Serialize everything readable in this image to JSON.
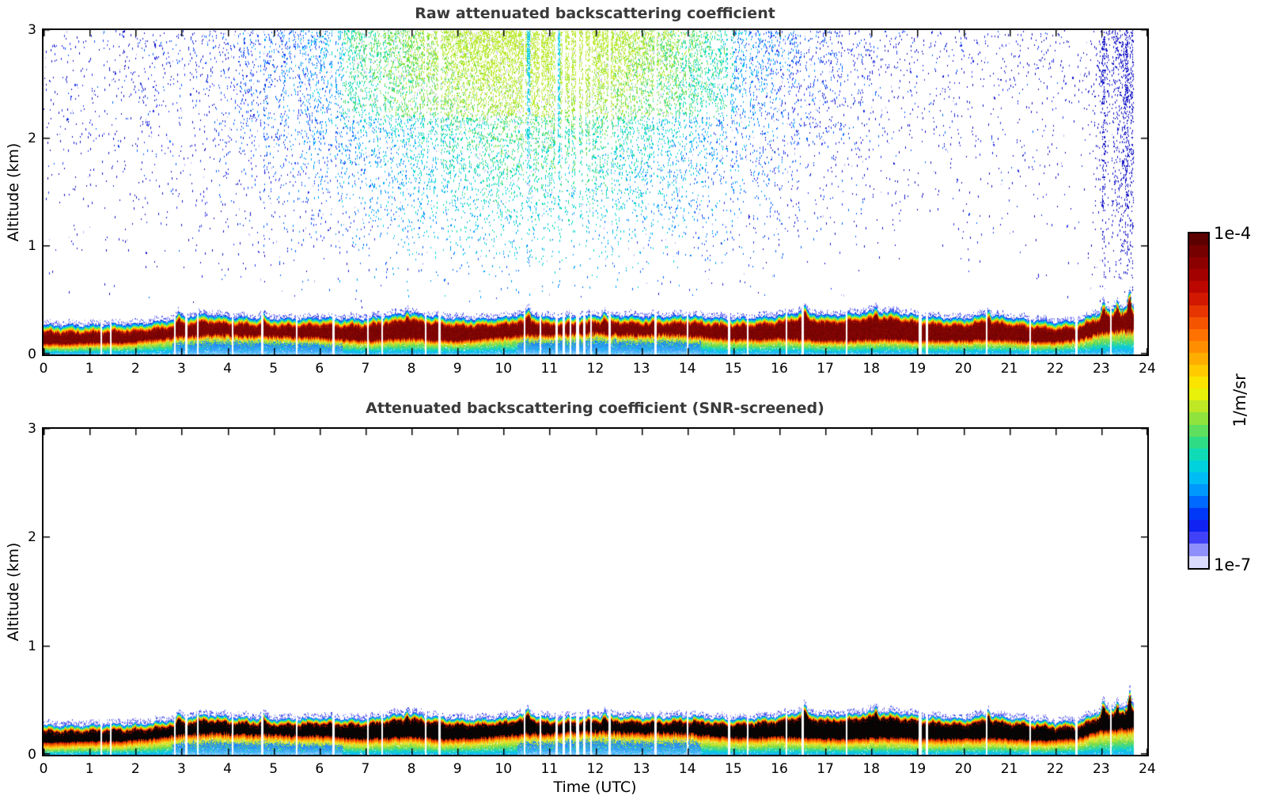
{
  "panels": {
    "raw": {
      "title": "Raw attenuated backscattering coefficient"
    },
    "screened": {
      "title": "Attenuated backscattering coefficient (SNR-screened)"
    }
  },
  "axes": {
    "ylabel": "Altitude (km)",
    "xlabel": "Time (UTC)",
    "x_ticks": [
      "0",
      "1",
      "2",
      "3",
      "4",
      "5",
      "6",
      "7",
      "8",
      "9",
      "10",
      "11",
      "12",
      "13",
      "14",
      "15",
      "16",
      "17",
      "18",
      "19",
      "20",
      "21",
      "22",
      "23",
      "24"
    ],
    "y_ticks": [
      "0",
      "1",
      "2",
      "3"
    ]
  },
  "colorbar": {
    "top_label": "1e-4",
    "bottom_label": "1e-7",
    "unit": "1/m/sr",
    "stops": [
      [
        0.0,
        "#500000"
      ],
      [
        0.06,
        "#7a0000"
      ],
      [
        0.12,
        "#a00000"
      ],
      [
        0.18,
        "#c80a00"
      ],
      [
        0.24,
        "#eb3c00"
      ],
      [
        0.3,
        "#ff6e00"
      ],
      [
        0.36,
        "#ffa000"
      ],
      [
        0.42,
        "#ffd200"
      ],
      [
        0.47,
        "#f5f500"
      ],
      [
        0.52,
        "#bee628"
      ],
      [
        0.57,
        "#78e146"
      ],
      [
        0.63,
        "#28dc8c"
      ],
      [
        0.68,
        "#00dcd2"
      ],
      [
        0.73,
        "#00bef5"
      ],
      [
        0.78,
        "#008cff"
      ],
      [
        0.82,
        "#0050ff"
      ],
      [
        0.86,
        "#001ef0"
      ],
      [
        0.9,
        "#2828f5"
      ],
      [
        0.93,
        "#6e6efa"
      ],
      [
        0.96,
        "#aaaafc"
      ],
      [
        0.98,
        "#d7d7fc"
      ],
      [
        1.0,
        "#f0f0fc"
      ]
    ]
  },
  "chart_data": {
    "type": "heatmap",
    "title_raw": "Raw attenuated backscattering coefficient",
    "title_screened": "Attenuated backscattering coefficient (SNR-screened)",
    "x_axis": {
      "label": "Time (UTC)",
      "min": 0,
      "max": 24,
      "tick_step": 1,
      "units": "hours UTC"
    },
    "y_axis": {
      "label": "Altitude (km)",
      "min": 0,
      "max": 3,
      "tick_step": 1
    },
    "color_scale": {
      "min": "1e-7",
      "max": "1e-4",
      "units": "1/m/sr",
      "scale": "log"
    },
    "data_end_hour": 23.7,
    "layer_sample_step_hours": 0.5,
    "layer_top_km": [
      0.27,
      0.27,
      0.27,
      0.28,
      0.28,
      0.3,
      0.34,
      0.37,
      0.35,
      0.34,
      0.33,
      0.33,
      0.34,
      0.33,
      0.33,
      0.36,
      0.38,
      0.35,
      0.33,
      0.33,
      0.34,
      0.38,
      0.34,
      0.35,
      0.36,
      0.36,
      0.35,
      0.35,
      0.36,
      0.34,
      0.33,
      0.34,
      0.36,
      0.4,
      0.36,
      0.37,
      0.4,
      0.39,
      0.36,
      0.34,
      0.33,
      0.37,
      0.34,
      0.32,
      0.3,
      0.31,
      0.4,
      0.44
    ],
    "ground_cyan_top_km": [
      0.06,
      0.06,
      0.07,
      0.07,
      0.08,
      0.1,
      0.13,
      0.14,
      0.14,
      0.13,
      0.13,
      0.12,
      0.12,
      0.1,
      0.09,
      0.1,
      0.11,
      0.09,
      0.09,
      0.1,
      0.12,
      0.14,
      0.14,
      0.15,
      0.16,
      0.15,
      0.14,
      0.15,
      0.14,
      0.12,
      0.1,
      0.1,
      0.11,
      0.1,
      0.09,
      0.09,
      0.1,
      0.1,
      0.09,
      0.09,
      0.09,
      0.1,
      0.09,
      0.08,
      0.08,
      0.1,
      0.16,
      0.18
    ],
    "layer_spikes": [
      [
        2.95,
        0.05
      ],
      [
        4.78,
        0.06
      ],
      [
        7.9,
        0.04
      ],
      [
        10.55,
        0.05
      ],
      [
        12.2,
        0.04
      ],
      [
        16.55,
        0.06
      ],
      [
        18.1,
        0.04
      ],
      [
        20.55,
        0.05
      ],
      [
        23.05,
        0.1
      ],
      [
        23.35,
        0.08
      ],
      [
        23.62,
        0.14
      ]
    ],
    "gap_hours": [
      [
        1.25,
        2
      ],
      [
        1.45,
        2
      ],
      [
        2.85,
        2
      ],
      [
        3.1,
        2
      ],
      [
        3.35,
        2
      ],
      [
        4.1,
        2
      ],
      [
        4.75,
        3
      ],
      [
        5.5,
        2
      ],
      [
        6.3,
        2
      ],
      [
        7.05,
        2
      ],
      [
        7.35,
        2
      ],
      [
        8.3,
        2
      ],
      [
        8.6,
        2
      ],
      [
        10.45,
        2
      ],
      [
        10.8,
        2
      ],
      [
        11.15,
        2
      ],
      [
        11.3,
        3
      ],
      [
        11.45,
        2
      ],
      [
        11.6,
        3
      ],
      [
        11.75,
        2
      ],
      [
        11.9,
        2
      ],
      [
        12.3,
        2
      ],
      [
        13.3,
        2
      ],
      [
        14.0,
        2
      ],
      [
        14.9,
        2
      ],
      [
        15.3,
        2
      ],
      [
        16.15,
        2
      ],
      [
        16.5,
        2
      ],
      [
        17.45,
        2
      ],
      [
        19.05,
        3
      ],
      [
        19.2,
        2
      ],
      [
        20.5,
        2
      ],
      [
        21.45,
        2
      ],
      [
        22.45,
        2
      ],
      [
        23.2,
        2
      ]
    ],
    "noise_streak_hours": [
      [
        4.78,
        0.5
      ],
      [
        10.55,
        0.6
      ],
      [
        11.2,
        0.5
      ],
      [
        23.05,
        1.0
      ],
      [
        23.55,
        1.0
      ]
    ],
    "blue_ground_periods": [
      [
        2.8,
        6.5
      ],
      [
        10.3,
        14.3
      ]
    ],
    "noise_peak_hour": 10.8,
    "seed": 1337
  }
}
